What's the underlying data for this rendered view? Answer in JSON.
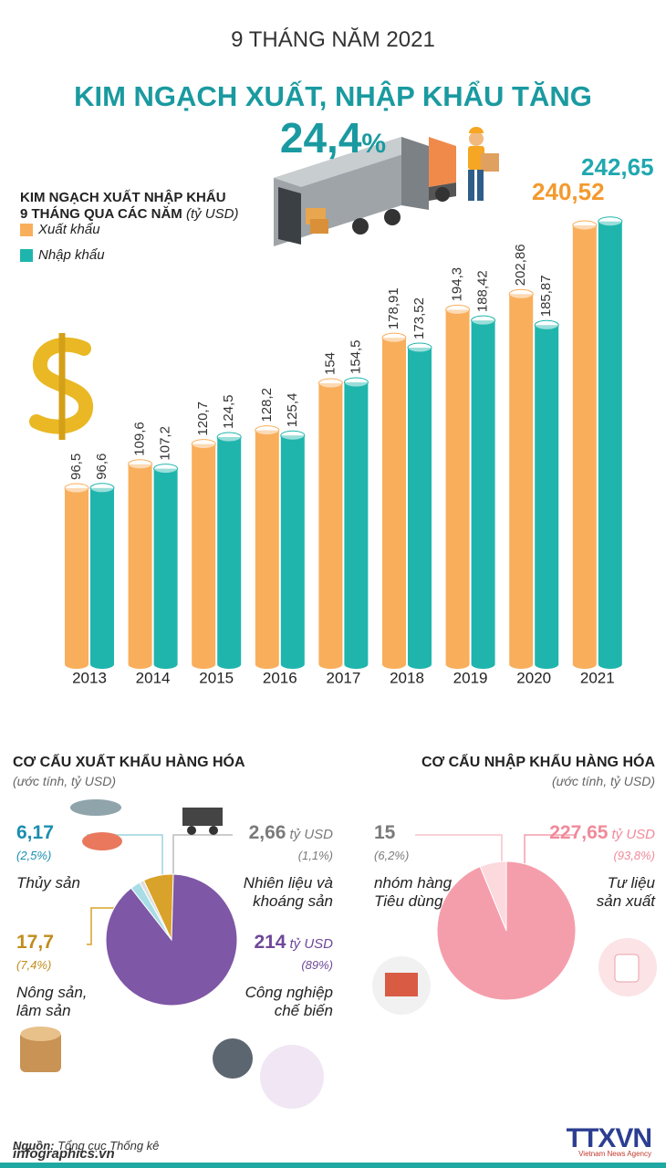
{
  "header": {
    "subtitle": "9 THÁNG NĂM 2021",
    "title": "KIM NGẠCH XUẤT, NHẬP KHẨU TĂNG",
    "highlight": "24,4",
    "highlight_unit": "%"
  },
  "chart_data": [
    {
      "type": "bar",
      "title": "KIM NGẠCH XUẤT NHẬP KHẨU\n9 THÁNG QUA CÁC NĂM",
      "unit": "(tỷ USD)",
      "categories": [
        "2013",
        "2014",
        "2015",
        "2016",
        "2017",
        "2018",
        "2019",
        "2020",
        "2021"
      ],
      "series": [
        {
          "name": "Xuất khẩu",
          "color": "#f9ae5b",
          "values": [
            96.5,
            109.6,
            120.7,
            128.2,
            154,
            178.91,
            194.3,
            202.86,
            240.52
          ],
          "value_labels": [
            "96,5",
            "109,6",
            "120,7",
            "128,2",
            "154",
            "178,91",
            "194,3",
            "202,86",
            "240,52"
          ]
        },
        {
          "name": "Nhập khẩu",
          "color": "#1fb5ad",
          "values": [
            96.6,
            107.2,
            124.5,
            125.4,
            154.5,
            173.52,
            188.42,
            185.87,
            242.65
          ],
          "value_labels": [
            "96,6",
            "107,2",
            "124,5",
            "125,4",
            "154,5",
            "173,52",
            "188,42",
            "185,87",
            "242,65"
          ]
        }
      ],
      "ylim": [
        0,
        250
      ]
    },
    {
      "type": "pie",
      "title": "CƠ CẤU XUẤT KHẨU HÀNG HÓA",
      "subtitle": "(ước tính, tỷ USD)",
      "categories": [
        "Thủy sản",
        "Nhiên liệu và\nkhoáng sản",
        "Nông sản,\nlâm sản",
        "Công nghiệp\nchế biến"
      ],
      "values": [
        2.5,
        1.1,
        7.4,
        89
      ],
      "value_labels": [
        "(2,5%)",
        "(1,1%)",
        "(7,4%)",
        "(89%)"
      ],
      "amounts": [
        6.17,
        2.66,
        17.7,
        214
      ],
      "amount_labels": [
        "6,17",
        "2,66",
        "17,7",
        "214"
      ],
      "amount_units": [
        null,
        "tỷ USD",
        null,
        "tỷ USD"
      ],
      "colors": [
        "#a8dde6",
        "#dedede",
        "#d9a22a",
        "#7e57a6"
      ]
    },
    {
      "type": "pie",
      "title": "CƠ CẤU NHẬP KHẨU HÀNG HÓA",
      "subtitle": "(ước tính, tỷ USD)",
      "categories": [
        "nhóm hàng\nTiêu dùng",
        "Tư liệu\nsản xuất"
      ],
      "values": [
        6.2,
        93.8
      ],
      "value_labels": [
        "(6,2%)",
        "(93,8%)"
      ],
      "amounts": [
        15,
        227.65
      ],
      "amount_labels": [
        "15",
        "227,65"
      ],
      "amount_units": [
        null,
        "tỷ USD"
      ],
      "colors": [
        "#fbd9dd",
        "#f59eab"
      ]
    }
  ],
  "footer": {
    "source_label": "Nguồn:",
    "source": "Tổng cục Thống kê",
    "website": "infographics.vn",
    "logo": "TTXVN",
    "logo_sub": "Vietnam News Agency"
  }
}
